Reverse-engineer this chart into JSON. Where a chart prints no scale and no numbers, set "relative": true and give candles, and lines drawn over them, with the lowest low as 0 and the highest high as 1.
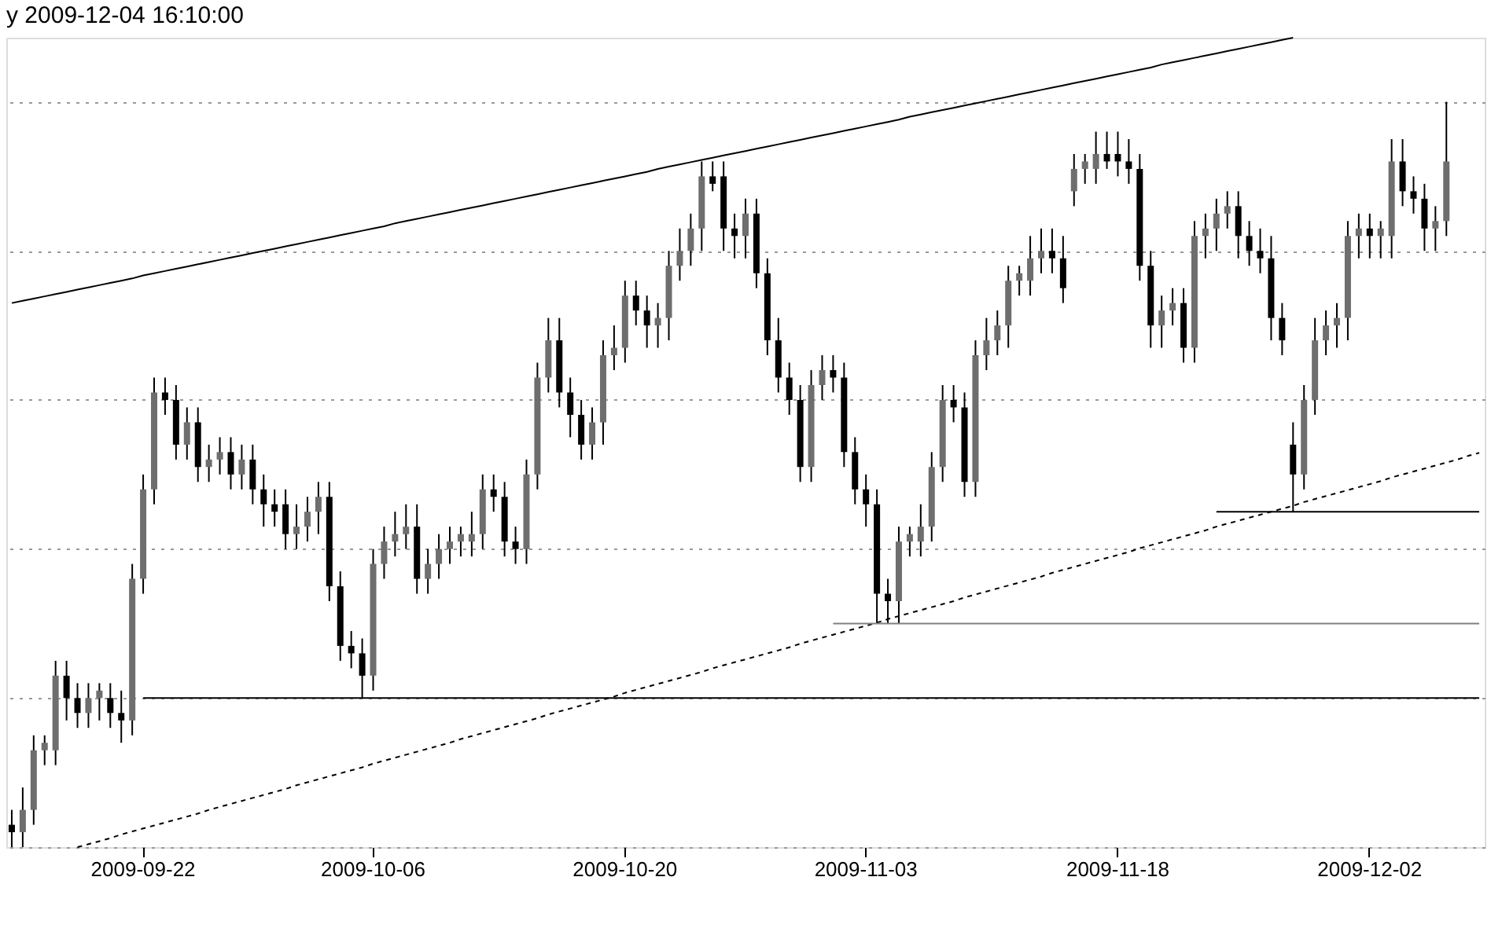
{
  "chart_data": {
    "type": "candlestick",
    "title": "y 2009-12-04 16:10:00",
    "relative": true,
    "grid": "y",
    "categories": [
      null,
      null,
      null,
      null,
      null,
      null,
      null,
      null,
      null,
      null,
      null,
      null,
      "2009-09-22",
      null,
      null,
      null,
      null,
      null,
      null,
      null,
      null,
      null,
      null,
      null,
      null,
      null,
      null,
      null,
      null,
      null,
      null,
      null,
      null,
      "2009-10-06",
      null,
      null,
      null,
      null,
      null,
      null,
      null,
      null,
      null,
      null,
      null,
      null,
      null,
      null,
      null,
      null,
      null,
      null,
      null,
      null,
      null,
      null,
      "2009-10-20",
      null,
      null,
      null,
      null,
      null,
      null,
      null,
      null,
      null,
      null,
      null,
      null,
      null,
      null,
      null,
      null,
      null,
      null,
      null,
      null,
      null,
      "2009-11-03",
      null,
      null,
      null,
      null,
      null,
      null,
      null,
      null,
      null,
      null,
      null,
      null,
      null,
      null,
      null,
      null,
      null,
      null,
      null,
      null,
      null,
      null,
      "2009-11-18",
      null,
      null,
      null,
      null,
      null,
      null,
      null,
      null,
      null,
      null,
      null,
      null,
      null,
      null,
      null,
      null,
      null,
      null,
      null,
      null,
      null,
      null,
      "2009-12-02",
      null,
      null,
      null,
      null,
      null,
      null,
      null,
      null,
      null,
      null
    ],
    "ohlc": [
      [
        0.03,
        0.05,
        0.0,
        0.02
      ],
      [
        0.02,
        0.08,
        0.0,
        0.05
      ],
      [
        0.05,
        0.15,
        0.03,
        0.13
      ],
      [
        0.13,
        0.15,
        0.11,
        0.14
      ],
      [
        0.13,
        0.25,
        0.11,
        0.23
      ],
      [
        0.23,
        0.25,
        0.17,
        0.2
      ],
      [
        0.2,
        0.22,
        0.16,
        0.18
      ],
      [
        0.18,
        0.22,
        0.16,
        0.2
      ],
      [
        0.2,
        0.22,
        0.17,
        0.21
      ],
      [
        0.2,
        0.22,
        0.16,
        0.18
      ],
      [
        0.18,
        0.21,
        0.14,
        0.17
      ],
      [
        0.17,
        0.38,
        0.15,
        0.36
      ],
      [
        0.36,
        0.5,
        0.34,
        0.48
      ],
      [
        0.48,
        0.63,
        0.46,
        0.61
      ],
      [
        0.61,
        0.63,
        0.58,
        0.6
      ],
      [
        0.6,
        0.62,
        0.52,
        0.54
      ],
      [
        0.54,
        0.59,
        0.52,
        0.57
      ],
      [
        0.57,
        0.59,
        0.49,
        0.51
      ],
      [
        0.51,
        0.54,
        0.49,
        0.52
      ],
      [
        0.52,
        0.55,
        0.5,
        0.53
      ],
      [
        0.53,
        0.55,
        0.48,
        0.5
      ],
      [
        0.5,
        0.54,
        0.48,
        0.52
      ],
      [
        0.52,
        0.54,
        0.46,
        0.48
      ],
      [
        0.48,
        0.5,
        0.43,
        0.46
      ],
      [
        0.46,
        0.48,
        0.43,
        0.45
      ],
      [
        0.46,
        0.48,
        0.4,
        0.42
      ],
      [
        0.42,
        0.46,
        0.4,
        0.43
      ],
      [
        0.43,
        0.47,
        0.41,
        0.45
      ],
      [
        0.45,
        0.49,
        0.42,
        0.47
      ],
      [
        0.47,
        0.49,
        0.33,
        0.35
      ],
      [
        0.35,
        0.37,
        0.25,
        0.27
      ],
      [
        0.27,
        0.29,
        0.24,
        0.26
      ],
      [
        0.26,
        0.28,
        0.2,
        0.23
      ],
      [
        0.23,
        0.4,
        0.21,
        0.38
      ],
      [
        0.38,
        0.43,
        0.36,
        0.41
      ],
      [
        0.41,
        0.45,
        0.39,
        0.42
      ],
      [
        0.42,
        0.46,
        0.4,
        0.43
      ],
      [
        0.43,
        0.46,
        0.34,
        0.36
      ],
      [
        0.36,
        0.4,
        0.34,
        0.38
      ],
      [
        0.38,
        0.42,
        0.36,
        0.4
      ],
      [
        0.4,
        0.43,
        0.38,
        0.41
      ],
      [
        0.41,
        0.43,
        0.39,
        0.42
      ],
      [
        0.41,
        0.45,
        0.39,
        0.42
      ],
      [
        0.42,
        0.5,
        0.4,
        0.48
      ],
      [
        0.48,
        0.5,
        0.45,
        0.47
      ],
      [
        0.47,
        0.49,
        0.39,
        0.41
      ],
      [
        0.41,
        0.43,
        0.38,
        0.4
      ],
      [
        0.4,
        0.52,
        0.38,
        0.5
      ],
      [
        0.5,
        0.65,
        0.48,
        0.63
      ],
      [
        0.63,
        0.71,
        0.61,
        0.68
      ],
      [
        0.68,
        0.71,
        0.59,
        0.61
      ],
      [
        0.61,
        0.63,
        0.55,
        0.58
      ],
      [
        0.58,
        0.6,
        0.52,
        0.54
      ],
      [
        0.54,
        0.59,
        0.52,
        0.57
      ],
      [
        0.57,
        0.68,
        0.54,
        0.66
      ],
      [
        0.66,
        0.7,
        0.64,
        0.67
      ],
      [
        0.67,
        0.76,
        0.65,
        0.74
      ],
      [
        0.74,
        0.76,
        0.7,
        0.72
      ],
      [
        0.72,
        0.74,
        0.67,
        0.7
      ],
      [
        0.7,
        0.73,
        0.67,
        0.71
      ],
      [
        0.71,
        0.8,
        0.68,
        0.78
      ],
      [
        0.78,
        0.83,
        0.76,
        0.8
      ],
      [
        0.8,
        0.85,
        0.78,
        0.83
      ],
      [
        0.83,
        0.92,
        0.8,
        0.9
      ],
      [
        0.9,
        0.92,
        0.88,
        0.89
      ],
      [
        0.9,
        0.92,
        0.8,
        0.83
      ],
      [
        0.83,
        0.85,
        0.79,
        0.82
      ],
      [
        0.82,
        0.87,
        0.79,
        0.85
      ],
      [
        0.85,
        0.87,
        0.75,
        0.77
      ],
      [
        0.77,
        0.79,
        0.66,
        0.68
      ],
      [
        0.68,
        0.71,
        0.61,
        0.63
      ],
      [
        0.63,
        0.65,
        0.58,
        0.6
      ],
      [
        0.6,
        0.62,
        0.49,
        0.51
      ],
      [
        0.51,
        0.64,
        0.49,
        0.62
      ],
      [
        0.62,
        0.66,
        0.6,
        0.64
      ],
      [
        0.64,
        0.66,
        0.61,
        0.63
      ],
      [
        0.63,
        0.65,
        0.51,
        0.53
      ],
      [
        0.53,
        0.55,
        0.46,
        0.48
      ],
      [
        0.48,
        0.5,
        0.43,
        0.46
      ],
      [
        0.46,
        0.48,
        0.3,
        0.34
      ],
      [
        0.34,
        0.36,
        0.3,
        0.33
      ],
      [
        0.33,
        0.43,
        0.3,
        0.41
      ],
      [
        0.41,
        0.43,
        0.39,
        0.42
      ],
      [
        0.41,
        0.46,
        0.39,
        0.43
      ],
      [
        0.43,
        0.53,
        0.41,
        0.51
      ],
      [
        0.51,
        0.62,
        0.49,
        0.6
      ],
      [
        0.6,
        0.62,
        0.57,
        0.59
      ],
      [
        0.59,
        0.61,
        0.47,
        0.49
      ],
      [
        0.49,
        0.68,
        0.47,
        0.66
      ],
      [
        0.66,
        0.71,
        0.64,
        0.68
      ],
      [
        0.68,
        0.72,
        0.66,
        0.7
      ],
      [
        0.7,
        0.78,
        0.67,
        0.76
      ],
      [
        0.76,
        0.78,
        0.74,
        0.77
      ],
      [
        0.76,
        0.82,
        0.74,
        0.79
      ],
      [
        0.79,
        0.83,
        0.77,
        0.8
      ],
      [
        0.8,
        0.83,
        0.77,
        0.79
      ],
      [
        0.79,
        0.82,
        0.73,
        0.75
      ],
      [
        0.88,
        0.93,
        0.86,
        0.91
      ],
      [
        0.91,
        0.93,
        0.89,
        0.92
      ],
      [
        0.91,
        0.96,
        0.89,
        0.93
      ],
      [
        0.93,
        0.96,
        0.91,
        0.92
      ],
      [
        0.93,
        0.96,
        0.9,
        0.92
      ],
      [
        0.92,
        0.95,
        0.89,
        0.91
      ],
      [
        0.91,
        0.93,
        0.76,
        0.78
      ],
      [
        0.78,
        0.8,
        0.67,
        0.7
      ],
      [
        0.7,
        0.74,
        0.67,
        0.72
      ],
      [
        0.72,
        0.75,
        0.7,
        0.73
      ],
      [
        0.73,
        0.75,
        0.65,
        0.67
      ],
      [
        0.67,
        0.84,
        0.65,
        0.82
      ],
      [
        0.82,
        0.85,
        0.79,
        0.83
      ],
      [
        0.83,
        0.87,
        0.8,
        0.85
      ],
      [
        0.85,
        0.88,
        0.83,
        0.86
      ],
      [
        0.86,
        0.88,
        0.79,
        0.82
      ],
      [
        0.82,
        0.84,
        0.78,
        0.8
      ],
      [
        0.8,
        0.83,
        0.77,
        0.79
      ],
      [
        0.79,
        0.82,
        0.68,
        0.71
      ],
      [
        0.71,
        0.73,
        0.66,
        0.68
      ],
      [
        0.54,
        0.57,
        0.45,
        0.5
      ],
      [
        0.5,
        0.62,
        0.48,
        0.6
      ],
      [
        0.6,
        0.71,
        0.58,
        0.68
      ],
      [
        0.68,
        0.72,
        0.66,
        0.7
      ],
      [
        0.7,
        0.73,
        0.67,
        0.71
      ],
      [
        0.71,
        0.84,
        0.68,
        0.82
      ],
      [
        0.82,
        0.85,
        0.79,
        0.83
      ],
      [
        0.83,
        0.85,
        0.79,
        0.82
      ],
      [
        0.82,
        0.84,
        0.79,
        0.83
      ],
      [
        0.82,
        0.95,
        0.79,
        0.92
      ],
      [
        0.92,
        0.95,
        0.86,
        0.88
      ],
      [
        0.88,
        0.9,
        0.85,
        0.87
      ],
      [
        0.87,
        0.89,
        0.8,
        0.83
      ],
      [
        0.83,
        0.86,
        0.8,
        0.84
      ],
      [
        0.84,
        1.0,
        0.82,
        0.92
      ],
      null,
      null,
      null
    ],
    "series": [
      {
        "type": "line",
        "color": "#000000",
        "line_style": "solid",
        "values": [
          0.73,
          0.733,
          0.736,
          0.739,
          0.742,
          0.745,
          0.748,
          0.751,
          0.754,
          0.757,
          0.76,
          0.763,
          0.767,
          0.77,
          0.773,
          0.776,
          0.779,
          0.782,
          0.785,
          0.788,
          0.791,
          0.794,
          0.797,
          0.8,
          0.803,
          0.806,
          0.809,
          0.812,
          0.815,
          0.818,
          0.821,
          0.824,
          0.827,
          0.83,
          0.833,
          0.837,
          0.84,
          0.843,
          0.846,
          0.849,
          0.852,
          0.855,
          0.858,
          0.861,
          0.864,
          0.867,
          0.87,
          0.873,
          0.876,
          0.879,
          0.882,
          0.885,
          0.888,
          0.891,
          0.894,
          0.897,
          0.9,
          0.903,
          0.906,
          0.91,
          0.913,
          0.916,
          0.919,
          0.922,
          0.925,
          0.928,
          0.931,
          0.934,
          0.937,
          0.94,
          0.943,
          0.946,
          0.949,
          0.952,
          0.955,
          0.958,
          0.961,
          0.964,
          0.967,
          0.97,
          0.973,
          0.976,
          0.98,
          0.983,
          0.986,
          0.989,
          0.992,
          0.995,
          0.998,
          1.001,
          1.004,
          1.007,
          1.01,
          1.013,
          1.016,
          1.019,
          1.022,
          1.025,
          1.028,
          1.031,
          1.034,
          1.037,
          1.04,
          1.043,
          1.046,
          1.05,
          1.053,
          1.056,
          1.059,
          1.062,
          1.065,
          1.068,
          1.071,
          1.074,
          1.077,
          1.08,
          1.083,
          1.086,
          null,
          null,
          null,
          null,
          null,
          null,
          null,
          null,
          null,
          null,
          null,
          null,
          null,
          null,
          null,
          null,
          null
        ]
      },
      {
        "type": "line",
        "color": "#000000",
        "line_style": "dashed",
        "values": [
          null,
          null,
          null,
          null,
          null,
          null,
          0.0,
          0.004,
          0.008,
          0.012,
          0.017,
          0.021,
          0.025,
          0.029,
          0.033,
          0.037,
          0.041,
          0.045,
          0.05,
          0.054,
          0.058,
          0.062,
          0.066,
          0.07,
          0.074,
          0.078,
          0.083,
          0.087,
          0.091,
          0.095,
          0.099,
          0.103,
          0.107,
          0.112,
          0.116,
          0.12,
          0.124,
          0.128,
          0.132,
          0.136,
          0.14,
          0.145,
          0.149,
          0.153,
          0.157,
          0.161,
          0.165,
          0.169,
          0.173,
          0.178,
          0.182,
          0.186,
          0.19,
          0.194,
          0.198,
          0.202,
          0.207,
          0.211,
          0.215,
          0.219,
          0.223,
          0.227,
          0.231,
          0.235,
          0.24,
          0.244,
          0.248,
          0.252,
          0.256,
          0.26,
          0.264,
          0.268,
          0.273,
          0.277,
          0.281,
          0.285,
          0.289,
          0.293,
          0.297,
          0.301,
          0.306,
          0.31,
          0.314,
          0.318,
          0.322,
          0.326,
          0.33,
          0.335,
          0.339,
          0.343,
          0.347,
          0.351,
          0.355,
          0.359,
          0.363,
          0.368,
          0.372,
          0.376,
          0.38,
          0.384,
          0.388,
          0.392,
          0.396,
          0.401,
          0.405,
          0.409,
          0.413,
          0.417,
          0.421,
          0.425,
          0.43,
          0.434,
          0.438,
          0.442,
          0.446,
          0.45,
          0.454,
          0.458,
          0.463,
          0.467,
          0.471,
          0.475,
          0.479,
          0.483,
          0.487,
          0.491,
          0.496,
          0.5,
          0.504,
          0.508,
          0.512,
          0.516,
          0.52,
          0.525,
          0.529
        ]
      },
      {
        "type": "line",
        "color": "#000000",
        "line_style": "solid",
        "values": [
          null,
          null,
          null,
          null,
          null,
          null,
          null,
          null,
          null,
          null,
          null,
          null,
          0.2,
          0.2,
          0.2,
          0.2,
          0.2,
          0.2,
          0.2,
          0.2,
          0.2,
          0.2,
          0.2,
          0.2,
          0.2,
          0.2,
          0.2,
          0.2,
          0.2,
          0.2,
          0.2,
          0.2,
          0.2,
          0.2,
          0.2,
          0.2,
          0.2,
          0.2,
          0.2,
          0.2,
          0.2,
          0.2,
          0.2,
          0.2,
          0.2,
          0.2,
          0.2,
          0.2,
          0.2,
          0.2,
          0.2,
          0.2,
          0.2,
          0.2,
          0.2,
          0.2,
          0.2,
          0.2,
          0.2,
          0.2,
          0.2,
          0.2,
          0.2,
          0.2,
          0.2,
          0.2,
          0.2,
          0.2,
          0.2,
          0.2,
          0.2,
          0.2,
          0.2,
          0.2,
          0.2,
          0.2,
          0.2,
          0.2,
          0.2,
          0.2,
          0.2,
          0.2,
          0.2,
          0.2,
          0.2,
          0.2,
          0.2,
          0.2,
          0.2,
          0.2,
          0.2,
          0.2,
          0.2,
          0.2,
          0.2,
          0.2,
          0.2,
          0.2,
          0.2,
          0.2,
          0.2,
          0.2,
          0.2,
          0.2,
          0.2,
          0.2,
          0.2,
          0.2,
          0.2,
          0.2,
          0.2,
          0.2,
          0.2,
          0.2,
          0.2,
          0.2,
          0.2,
          0.2,
          0.2,
          0.2,
          0.2,
          0.2,
          0.2,
          0.2,
          0.2,
          0.2,
          0.2,
          0.2,
          0.2,
          0.2,
          0.2,
          0.2,
          0.2,
          0.2,
          0.2
        ]
      },
      {
        "type": "line",
        "color": "#808080",
        "line_style": "solid",
        "values": [
          null,
          null,
          null,
          null,
          null,
          null,
          null,
          null,
          null,
          null,
          null,
          null,
          null,
          null,
          null,
          null,
          null,
          null,
          null,
          null,
          null,
          null,
          null,
          null,
          null,
          null,
          null,
          null,
          null,
          null,
          null,
          null,
          null,
          null,
          null,
          null,
          null,
          null,
          null,
          null,
          null,
          null,
          null,
          null,
          null,
          null,
          null,
          null,
          null,
          null,
          null,
          null,
          null,
          null,
          null,
          null,
          null,
          null,
          null,
          null,
          null,
          null,
          null,
          null,
          null,
          null,
          null,
          null,
          null,
          null,
          null,
          null,
          null,
          null,
          null,
          0.3,
          0.3,
          0.3,
          0.3,
          0.3,
          0.3,
          0.3,
          0.3,
          0.3,
          0.3,
          0.3,
          0.3,
          0.3,
          0.3,
          0.3,
          0.3,
          0.3,
          0.3,
          0.3,
          0.3,
          0.3,
          0.3,
          0.3,
          0.3,
          0.3,
          0.3,
          0.3,
          0.3,
          0.3,
          0.3,
          0.3,
          0.3,
          0.3,
          0.3,
          0.3,
          0.3,
          0.3,
          0.3,
          0.3,
          0.3,
          0.3,
          0.3,
          0.3,
          0.3,
          0.3,
          0.3,
          0.3,
          0.3,
          0.3,
          0.3,
          0.3,
          0.3,
          0.3,
          0.3,
          0.3,
          0.3,
          0.3,
          0.3,
          0.3,
          0.3
        ]
      },
      {
        "type": "line",
        "color": "#000000",
        "line_style": "solid",
        "values": [
          null,
          null,
          null,
          null,
          null,
          null,
          null,
          null,
          null,
          null,
          null,
          null,
          null,
          null,
          null,
          null,
          null,
          null,
          null,
          null,
          null,
          null,
          null,
          null,
          null,
          null,
          null,
          null,
          null,
          null,
          null,
          null,
          null,
          null,
          null,
          null,
          null,
          null,
          null,
          null,
          null,
          null,
          null,
          null,
          null,
          null,
          null,
          null,
          null,
          null,
          null,
          null,
          null,
          null,
          null,
          null,
          null,
          null,
          null,
          null,
          null,
          null,
          null,
          null,
          null,
          null,
          null,
          null,
          null,
          null,
          null,
          null,
          null,
          null,
          null,
          null,
          null,
          null,
          null,
          null,
          null,
          null,
          null,
          null,
          null,
          null,
          null,
          null,
          null,
          null,
          null,
          null,
          null,
          null,
          null,
          null,
          null,
          null,
          null,
          null,
          null,
          null,
          null,
          null,
          null,
          null,
          null,
          null,
          null,
          null,
          0.45,
          0.45,
          0.45,
          0.45,
          0.45,
          0.45,
          0.45,
          0.45,
          0.45,
          0.45,
          0.45,
          0.45,
          0.45,
          0.45,
          0.45,
          0.45,
          0.45,
          0.45,
          0.45,
          0.45,
          0.45,
          0.45,
          0.45,
          0.45,
          0.45
        ]
      }
    ]
  }
}
